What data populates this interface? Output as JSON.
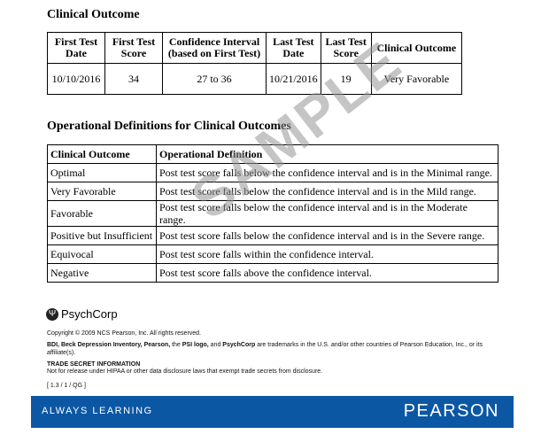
{
  "clinical_outcome": {
    "title": "Clinical Outcome",
    "headers": [
      "First Test Date",
      "First Test Score",
      "Confidence Interval (based on First Test)",
      "Last Test Date",
      "Last Test Score",
      "Clinical Outcome"
    ],
    "row": [
      "10/10/2016",
      "34",
      "27 to 36",
      "10/21/2016",
      "19",
      "Very Favorable"
    ]
  },
  "definitions": {
    "title": "Operational Definitions for Clinical Outcomes",
    "headers": [
      "Clinical Outcome",
      "Operational Definition"
    ],
    "rows": [
      [
        "Optimal",
        "Post test score falls below the confidence interval and is in the Minimal range."
      ],
      [
        "Very Favorable",
        "Post test score falls below the confidence interval and is in the Mild range."
      ],
      [
        "Favorable",
        "Post test score falls below the confidence interval and is in the Moderate range."
      ],
      [
        "Positive but Insufficient",
        "Post test score falls below the confidence interval and is in the Severe range."
      ],
      [
        "Equivocal",
        "Post test score falls within the confidence interval."
      ],
      [
        "Negative",
        "Post test score falls above the confidence interval."
      ]
    ]
  },
  "watermark": "SAMPLE",
  "footer": {
    "logo": "PsychCorp",
    "copyright": "Copyright © 2009 NCS Pearson, Inc. All rights reserved.",
    "tm_bold1": "BDI, Beck Depression Inventory, Pearson,",
    "tm_text1": " the ",
    "tm_bold2": "PSI logo,",
    "tm_text2": " and ",
    "tm_bold3": "PsychCorp",
    "tm_text3": " are trademarks in the U.S. and/or other countries of Pearson Education, Inc., or its affiliate(s).",
    "trade_secret_title": "TRADE SECRET INFORMATION",
    "trade_secret_text": "Not for release under HIPAA or other data disclosure laws that exempt trade secrets from disclosure.",
    "code": "[ 1.3 / 1 / QG ]",
    "band_left": "ALWAYS LEARNING",
    "band_right": "PEARSON",
    "band_color": "#0b57a4"
  }
}
